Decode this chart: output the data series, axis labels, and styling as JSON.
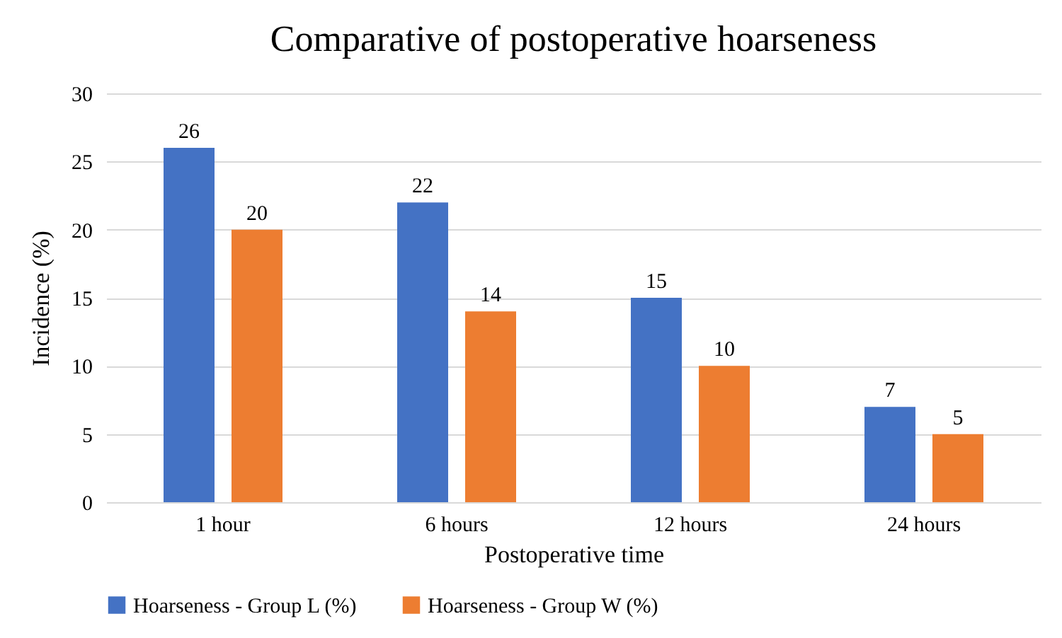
{
  "chart_data": {
    "type": "bar",
    "title": "Comparative of postoperative hoarseness",
    "xlabel": "Postoperative time",
    "ylabel": "Incidence (%)",
    "categories": [
      "1 hour",
      "6 hours",
      "12 hours",
      "24 hours"
    ],
    "series": [
      {
        "name": "Hoarseness - Group L (%)",
        "color": "#4472c4",
        "values": [
          26,
          22,
          15,
          7
        ]
      },
      {
        "name": "Hoarseness - Group W (%)",
        "color": "#ed7d31",
        "values": [
          20,
          14,
          10,
          5
        ]
      }
    ],
    "ylim": [
      0,
      30
    ],
    "yticks": [
      0,
      5,
      10,
      15,
      20,
      25,
      30
    ],
    "grid": "y",
    "legend": "bottom",
    "data_labels": true
  }
}
